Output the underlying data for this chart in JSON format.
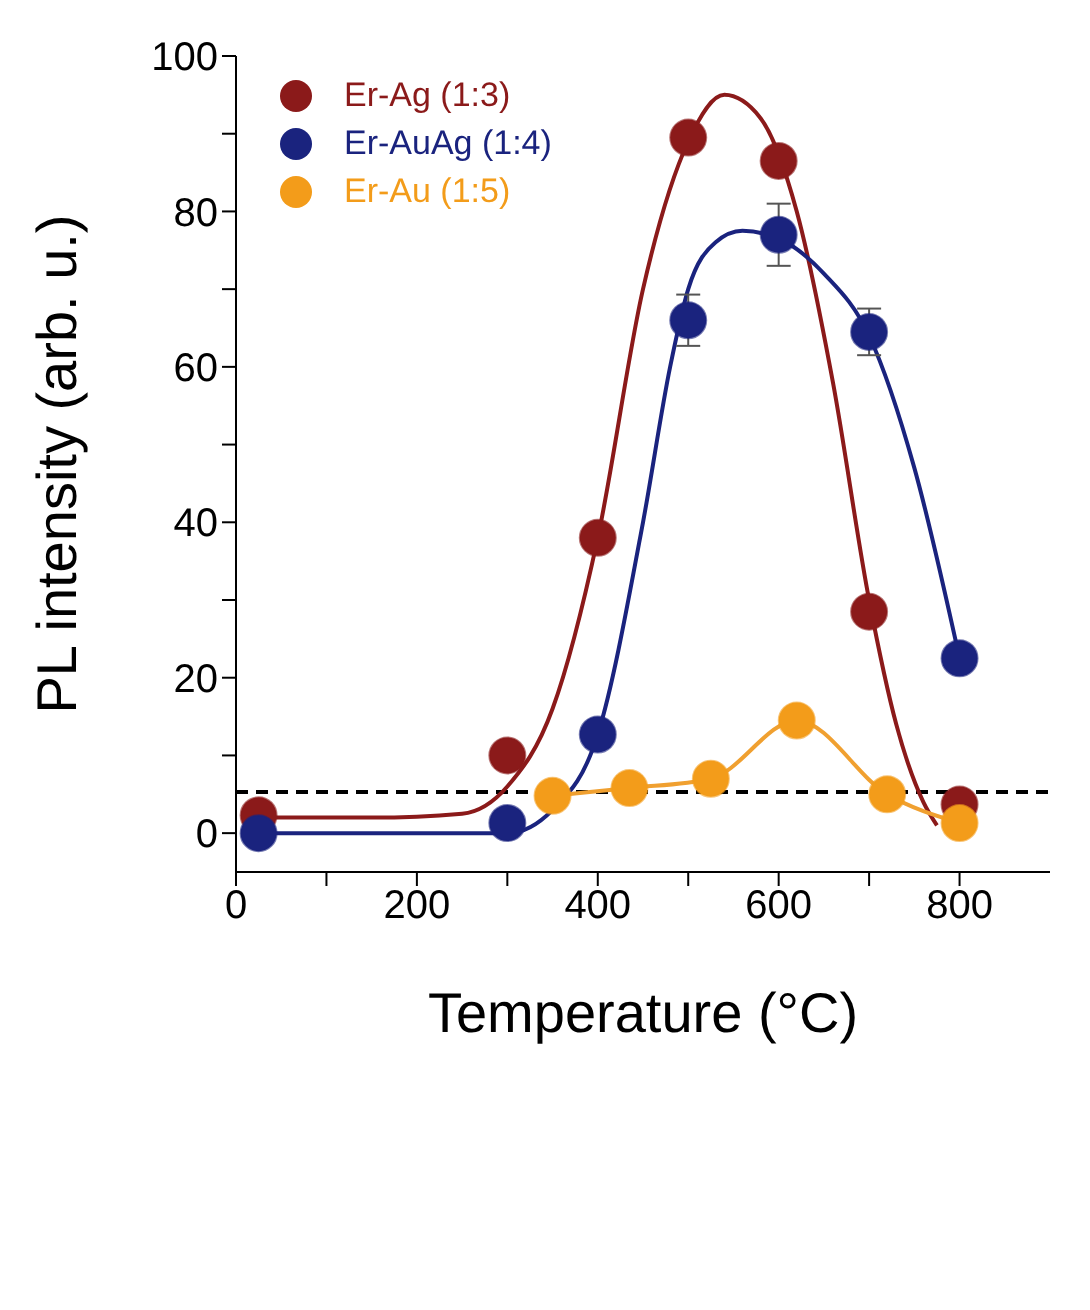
{
  "chart_data": {
    "type": "scatter",
    "xlabel": "Temperature (°C)",
    "ylabel": "PL intensity (arb. u.)",
    "xlim": [
      0,
      900
    ],
    "xticks": [
      0,
      {
        "value": 100,
        "label": null
      },
      200,
      {
        "value": 300,
        "label": null
      },
      400,
      {
        "value": 500,
        "label": null
      },
      600,
      {
        "value": 700,
        "label": null
      },
      800
    ],
    "ylim": [
      -5,
      100
    ],
    "yticks": [
      0,
      {
        "value": 10,
        "label": null
      },
      20,
      {
        "value": 30,
        "label": null
      },
      40,
      {
        "value": 50,
        "label": null
      },
      60,
      {
        "value": 70,
        "label": null
      },
      80,
      {
        "value": 90,
        "label": null
      },
      100
    ],
    "grid": false,
    "legend": "top left",
    "marker": "circle",
    "series": [
      {
        "type": "line",
        "color": "#8b1a1a",
        "line_style": "solid",
        "marker": "none",
        "x": [
          25,
          150,
          250,
          300,
          350,
          400,
          450,
          500,
          540,
          580,
          620,
          660,
          700,
          730,
          760,
          775
        ],
        "values": [
          2,
          2,
          2.5,
          6,
          16,
          38,
          70,
          89,
          95,
          92,
          80,
          58,
          30,
          14,
          4,
          1
        ]
      },
      {
        "type": "line",
        "color": "#1a237e",
        "line_style": "solid",
        "marker": "none",
        "x": [
          25,
          200,
          300,
          350,
          400,
          450,
          480,
          500,
          530,
          560,
          600,
          650,
          700,
          750,
          800
        ],
        "values": [
          0,
          0,
          0,
          3,
          12.7,
          40,
          60,
          70,
          76,
          77.5,
          76.5,
          72,
          64,
          47,
          22.5
        ]
      },
      {
        "type": "line",
        "color": "#f0a030",
        "line_style": "solid",
        "marker": "none",
        "x": [
          350,
          435,
          525,
          620,
          720,
          800
        ],
        "values": [
          4.8,
          5.8,
          7,
          14.5,
          5,
          1.3
        ]
      },
      {
        "name": "Er-Ag (1:3)",
        "color": "#8b1a1a",
        "x": [
          25,
          300,
          400,
          500,
          600,
          700,
          800
        ],
        "values": [
          2.3,
          10,
          38,
          89.5,
          86.5,
          28.5,
          3.7
        ]
      },
      {
        "name": "Er-AuAg (1:4)",
        "color": "#1a237e",
        "x": [
          25,
          300,
          400,
          500,
          600,
          700,
          800
        ],
        "values": [
          0,
          1.3,
          12.7,
          66,
          77,
          64.5,
          22.5
        ],
        "errors": [
          null,
          null,
          null,
          3.3,
          4,
          3,
          null
        ]
      },
      {
        "name": "Er-Au (1:5)",
        "color": "#f39c1a",
        "x": [
          350,
          435,
          525,
          620,
          720,
          800
        ],
        "values": [
          4.8,
          5.8,
          7,
          14.5,
          5,
          1.3
        ]
      }
    ],
    "ref_lines": [
      {
        "axis": "y",
        "value": 5.3,
        "color": "#000000",
        "line_style": "dashed"
      }
    ]
  }
}
